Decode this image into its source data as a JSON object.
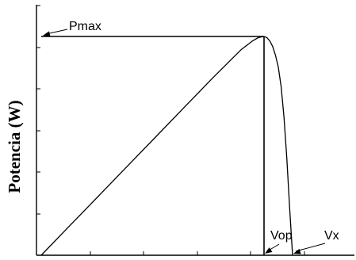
{
  "chart_data": {
    "type": "line",
    "title": "",
    "xlabel": "",
    "ylabel": "Potencia (W)",
    "xlim": [
      0,
      1
    ],
    "ylim": [
      0,
      1
    ],
    "grid": false,
    "legend": "none",
    "x_tick_count": 6,
    "y_tick_count": 6,
    "series": [
      {
        "x": [
          0,
          0.1,
          0.2,
          0.3,
          0.4,
          0.5,
          0.6,
          0.7,
          0.74,
          0.76,
          0.78,
          0.79,
          0.8,
          0.81,
          0.82,
          0.83,
          0.84,
          0.85,
          0.86,
          0.87,
          0.88
        ],
        "y": [
          0,
          0.135,
          0.27,
          0.405,
          0.54,
          0.675,
          0.81,
          0.94,
          0.98,
          0.995,
          1.0,
          0.995,
          0.98,
          0.955,
          0.915,
          0.86,
          0.77,
          0.63,
          0.44,
          0.21,
          0.0
        ]
      }
    ],
    "reference_lines": [
      {
        "from": [
          0,
          1
        ],
        "to": [
          0.78,
          1
        ]
      },
      {
        "from": [
          0.78,
          1
        ],
        "to": [
          0.78,
          0
        ]
      }
    ],
    "annotations": [
      {
        "text": "Pmax",
        "points_to": [
          0,
          1
        ]
      },
      {
        "text": "Vop",
        "points_to": [
          0.78,
          0
        ]
      },
      {
        "text": "Vx",
        "points_to": [
          0.88,
          0
        ]
      }
    ],
    "colors": {
      "line": "#000000",
      "axis": "#000000",
      "background": "#ffffff"
    }
  }
}
